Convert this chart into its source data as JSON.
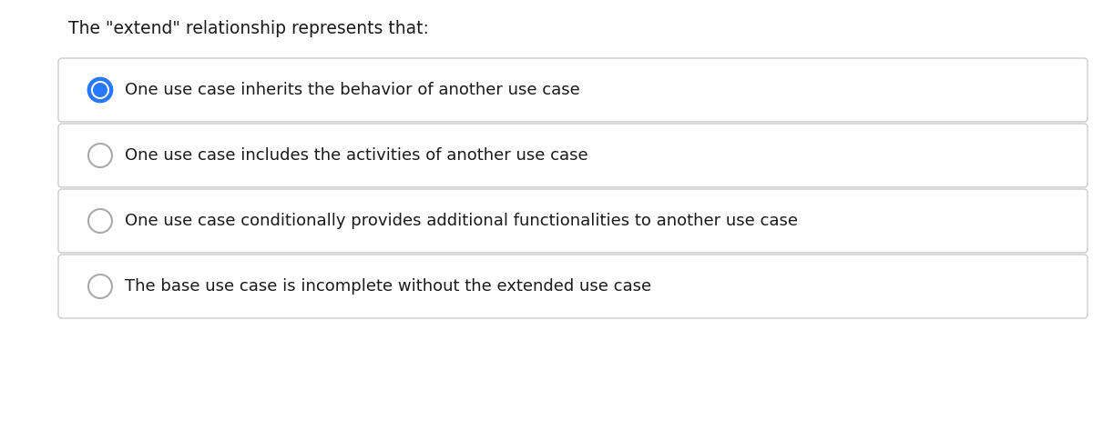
{
  "title": "The \"extend\" relationship represents that:",
  "title_fontsize": 13.5,
  "title_color": "#1a1a1a",
  "options": [
    "One use case inherits the behavior of another use case",
    "One use case includes the activities of another use case",
    "One use case conditionally provides additional functionalities to another use case",
    "The base use case is incomplete without the extended use case"
  ],
  "selected_index": 0,
  "option_fontsize": 13,
  "option_text_color": "#1a1a1a",
  "box_bg_color": "#ffffff",
  "box_border_color": "#cccccc",
  "radio_selected_fill": "#2979ff",
  "radio_selected_border": "#2979ff",
  "radio_unselected_fill": "#ffffff",
  "radio_unselected_border": "#aaaaaa",
  "background_color": "#ffffff",
  "fig_width": 12.0,
  "fig_height": 4.73,
  "dpi": 100
}
